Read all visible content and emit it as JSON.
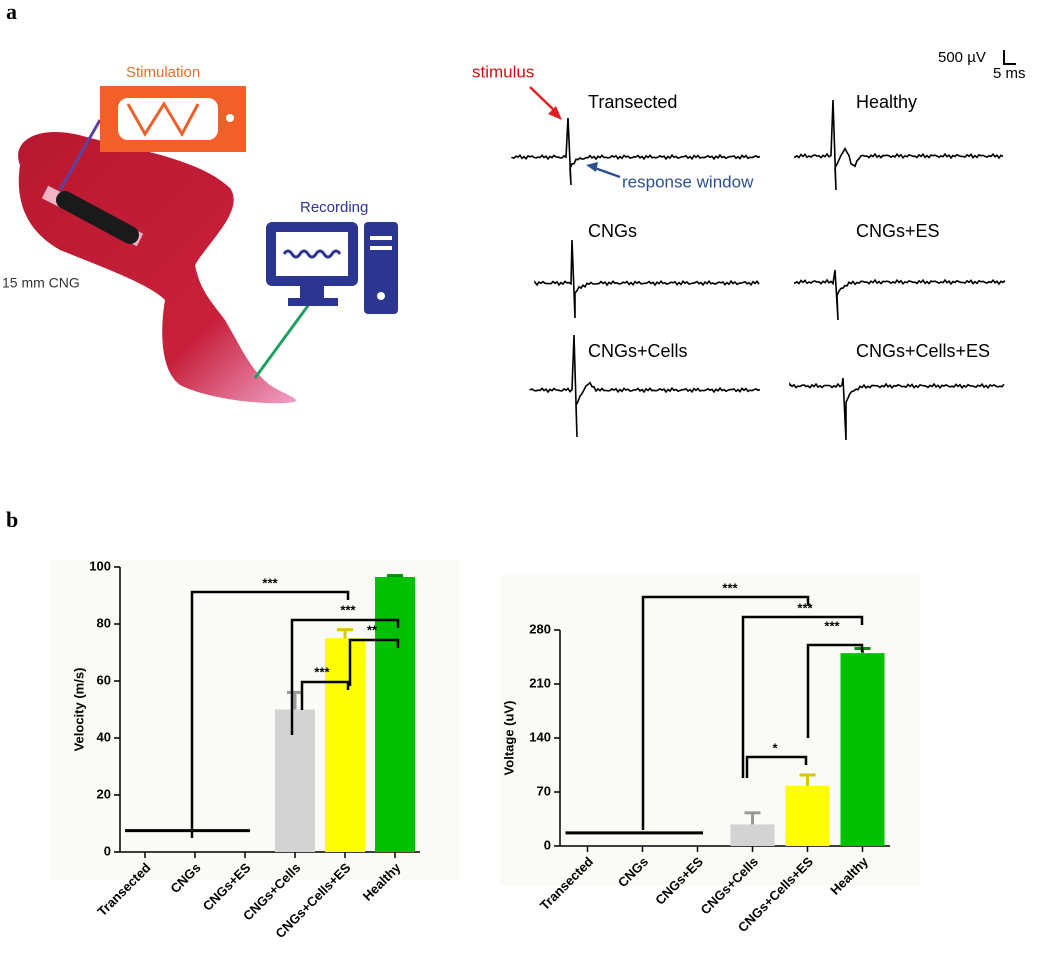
{
  "panel_labels": [
    "a",
    "b"
  ],
  "diagram": {
    "stimulation": "Stimulation",
    "recording": "Recording",
    "conduit": "15 mm CNG",
    "stimulus": "stimulus",
    "response_window": "response window",
    "scale_voltage": "500 µV",
    "scale_time": "5 ms",
    "traces": [
      "Transected",
      "Healthy",
      "CNGs",
      "CNGs+ES",
      "CNGs+Cells",
      "CNGs+Cells+ES"
    ]
  },
  "chart_data": [
    {
      "type": "bar",
      "y_label": "Velocity  (m/s)",
      "categories": [
        "Transected",
        "CNGs",
        "CNGs+ES",
        "CNGs+Cells",
        "CNGs+Cells+ES",
        "Healthy"
      ],
      "values": [
        0,
        0,
        0,
        50,
        75,
        96.5
      ],
      "errors": [
        0,
        0,
        0,
        6,
        3,
        0.5
      ],
      "colors": [
        "#d3d3d3",
        "#d3d3d3",
        "#d3d3d3",
        "#d3d3d3",
        "#ffff00",
        "#00c000"
      ],
      "ylim": [
        0,
        100
      ],
      "yticks": [
        0,
        20,
        40,
        60,
        80,
        100
      ],
      "annotations": [
        "***",
        "***",
        "***",
        "**"
      ]
    },
    {
      "type": "bar",
      "y_label": "Voltage (uV)",
      "categories": [
        "Transected",
        "CNGs",
        "CNGs+ES",
        "CNGs+Cells",
        "CNGs+Cells+ES",
        "Healthy"
      ],
      "values": [
        0,
        0,
        0,
        28,
        78,
        250
      ],
      "errors": [
        0,
        0,
        0,
        15,
        14,
        6
      ],
      "colors": [
        "#d3d3d3",
        "#d3d3d3",
        "#d3d3d3",
        "#d3d3d3",
        "#ffff00",
        "#00c000"
      ],
      "ylim": [
        0,
        280
      ],
      "yticks": [
        0,
        70,
        140,
        210,
        280
      ],
      "annotations": [
        "***",
        "***",
        "***",
        "*"
      ]
    }
  ]
}
